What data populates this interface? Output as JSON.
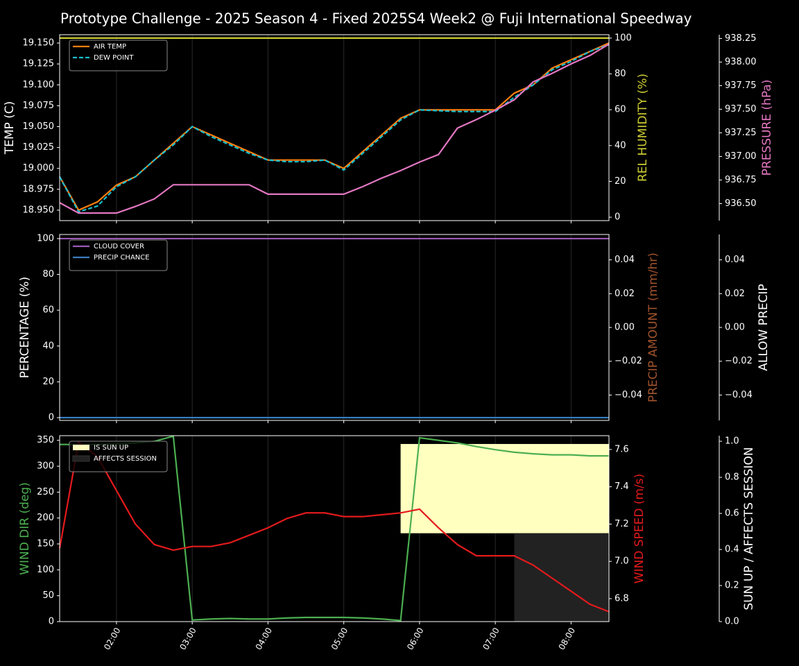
{
  "chart_data": [
    {
      "type": "line",
      "title": "Prototype Challenge  - 2025 Season 4 - Fixed 2025S4 Week2 @ Fuji International Speedway",
      "x": [
        "01:15",
        "01:30",
        "01:45",
        "02:00",
        "02:15",
        "02:30",
        "02:45",
        "03:00",
        "03:15",
        "03:30",
        "03:45",
        "04:00",
        "04:15",
        "04:30",
        "04:45",
        "05:00",
        "05:15",
        "05:30",
        "05:45",
        "06:00",
        "06:15",
        "06:30",
        "06:45",
        "07:00",
        "07:15",
        "07:30",
        "07:45",
        "08:00",
        "08:15",
        "08:30"
      ],
      "xlim": [
        "01:15",
        "08:30"
      ],
      "ylabel": "TEMP (C)",
      "ylim": [
        18.9375,
        19.16
      ],
      "yticks": [
        {
          "value": 18.95,
          "label": "18.950"
        },
        {
          "value": 18.975,
          "label": "18.975"
        },
        {
          "value": 19.0,
          "label": "19.000"
        },
        {
          "value": 19.025,
          "label": "19.025"
        },
        {
          "value": 19.05,
          "label": "19.050"
        },
        {
          "value": 19.075,
          "label": "19.075"
        },
        {
          "value": 19.1,
          "label": "19.100"
        },
        {
          "value": 19.125,
          "label": "19.125"
        },
        {
          "value": 19.15,
          "label": "19.150"
        }
      ],
      "y2label": "REL HUMIDITY (%)",
      "y2color": "#cccc33",
      "y2lim": [
        -1.9,
        101.9
      ],
      "y2ticks": [
        0,
        20,
        40,
        60,
        80,
        100
      ],
      "y3label": "PRESSURE (hPa)",
      "y3color": "#e377c2",
      "y3lim": [
        936.32,
        938.29
      ],
      "y3ticks": [
        {
          "value": 936.5,
          "label": "936.50"
        },
        936.75,
        {
          "value": 937,
          "label": "937.00"
        },
        937.25,
        {
          "value": 937.5,
          "label": "937.50"
        },
        937.75,
        {
          "value": 938,
          "label": "938.00"
        },
        938.25
      ],
      "legend": "upper left",
      "series": [
        {
          "name": "AIR TEMP",
          "color": "#ff7f0e",
          "values": [
            18.99,
            18.95,
            18.96,
            18.98,
            18.99,
            19.01,
            19.03,
            19.05,
            19.04,
            19.03,
            19.02,
            19.01,
            19.01,
            19.01,
            19.01,
            19.0,
            19.02,
            19.04,
            19.06,
            19.07,
            19.07,
            19.07,
            19.07,
            19.07,
            19.09,
            19.1,
            19.12,
            19.13,
            19.14,
            19.15
          ]
        },
        {
          "name": "DEW POINT",
          "color": "#17becf",
          "dashed": true,
          "values": [
            18.99,
            18.948,
            18.955,
            18.978,
            18.99,
            19.01,
            19.028,
            19.05,
            19.038,
            19.028,
            19.018,
            19.01,
            19.008,
            19.008,
            19.01,
            18.998,
            19.018,
            19.038,
            19.058,
            19.07,
            19.069,
            19.068,
            19.068,
            19.068,
            19.085,
            19.1,
            19.118,
            19.128,
            19.14,
            19.148
          ]
        },
        {
          "axis": "y2",
          "color": "#cccc33",
          "values": [
            100,
            100,
            100,
            100,
            100,
            100,
            100,
            100,
            100,
            100,
            100,
            100,
            100,
            100,
            100,
            100,
            100,
            100,
            100,
            100,
            100,
            100,
            100,
            100,
            100,
            100,
            100,
            100,
            100,
            100
          ]
        },
        {
          "axis": "y3",
          "color": "#e377c2",
          "values": [
            936.51,
            936.4,
            936.4,
            936.4,
            936.47,
            936.55,
            936.7,
            936.7,
            936.7,
            936.7,
            936.7,
            936.6,
            936.6,
            936.6,
            936.6,
            936.6,
            936.68,
            936.77,
            936.85,
            936.94,
            937.02,
            937.3,
            937.39,
            937.49,
            937.6,
            937.79,
            937.88,
            937.98,
            938.07,
            938.19
          ]
        }
      ]
    },
    {
      "type": "line",
      "x": [
        "01:15",
        "01:30",
        "01:45",
        "02:00",
        "02:15",
        "02:30",
        "02:45",
        "03:00",
        "03:15",
        "03:30",
        "03:45",
        "04:00",
        "04:15",
        "04:30",
        "04:45",
        "05:00",
        "05:15",
        "05:30",
        "05:45",
        "06:00",
        "06:15",
        "06:30",
        "06:45",
        "07:00",
        "07:15",
        "07:30",
        "07:45",
        "08:00",
        "08:15",
        "08:30"
      ],
      "xlim": [
        "01:15",
        "08:30"
      ],
      "ylabel": "PERCENTAGE (%)",
      "ylim": [
        -1.55,
        102.3
      ],
      "yticks": [
        0,
        20,
        40,
        60,
        80,
        100
      ],
      "y2label": "PRECIP AMOUNT (mm/hr)",
      "y2color": "#a0522d",
      "y2lim": [
        -0.055,
        0.055
      ],
      "y2ticks": [
        {
          "value": -0.04,
          "label": "−0.04"
        },
        {
          "value": -0.02,
          "label": "−0.02"
        },
        {
          "value": 0,
          "label": "0.00"
        },
        0.02,
        0.04
      ],
      "y3label": "ALLOW PRECIP",
      "y3color": "#ffffff",
      "y3lim": [
        -0.055,
        0.055
      ],
      "y3ticks": [
        {
          "value": -0.04,
          "label": "−0.04"
        },
        {
          "value": -0.02,
          "label": "−0.02"
        },
        {
          "value": 0,
          "label": "0.00"
        },
        0.02,
        0.04
      ],
      "legend": "upper left",
      "series": [
        {
          "name": "CLOUD COVER",
          "color": "#9b59b6",
          "values": [
            100,
            100,
            100,
            100,
            100,
            100,
            100,
            100,
            100,
            100,
            100,
            100,
            100,
            100,
            100,
            100,
            100,
            100,
            100,
            100,
            100,
            100,
            100,
            100,
            100,
            100,
            100,
            100,
            100,
            100
          ]
        },
        {
          "name": "PRECIP CHANCE",
          "color": "#3a7ebf",
          "values": [
            0,
            0,
            0,
            0,
            0,
            0,
            0,
            0,
            0,
            0,
            0,
            0,
            0,
            0,
            0,
            0,
            0,
            0,
            0,
            0,
            0,
            0,
            0,
            0,
            0,
            0,
            0,
            0,
            0,
            0
          ]
        }
      ]
    },
    {
      "type": "line",
      "x": [
        "01:15",
        "01:30",
        "01:45",
        "02:00",
        "02:15",
        "02:30",
        "02:45",
        "03:00",
        "03:15",
        "03:30",
        "03:45",
        "04:00",
        "04:15",
        "04:30",
        "04:45",
        "05:00",
        "05:15",
        "05:30",
        "05:45",
        "06:00",
        "06:15",
        "06:30",
        "06:45",
        "07:00",
        "07:15",
        "07:30",
        "07:45",
        "08:00",
        "08:15",
        "08:30"
      ],
      "xlim": [
        "01:15",
        "08:30"
      ],
      "xticks": [
        "02:00",
        "03:00",
        "04:00",
        "05:00",
        "06:00",
        "07:00",
        "08:00"
      ],
      "ylabel": "WIND DIR (deg)",
      "ycolor": "#4caf50",
      "ylim": [
        0,
        359
      ],
      "yticks": [
        0,
        50,
        100,
        150,
        200,
        250,
        300,
        350
      ],
      "y2label": "WIND SPEED (m/s)",
      "y2color": "#e31a1c",
      "y2lim": [
        6.677,
        7.674
      ],
      "y2ticks": [
        6.8,
        {
          "value": 7.0,
          "label": "7.0"
        },
        7.2,
        7.4,
        7.6
      ],
      "y3label": "SUN UP / AFFECTS SESSION",
      "y3color": "#ffffff",
      "y3lim": [
        0,
        1.031
      ],
      "y3ticks": [
        {
          "value": 0,
          "label": "0.0"
        },
        0.2,
        0.4,
        0.6,
        0.8,
        {
          "value": 1,
          "label": "1.0"
        }
      ],
      "legend": "upper left",
      "bands": [
        {
          "name": "IS SUN UP",
          "color": "#ffffc0",
          "x": [
            "05:45",
            "08:30"
          ],
          "y": [
            0.49,
            0.985
          ]
        },
        {
          "name": "AFFECTS SESSION",
          "color": "#222222",
          "x": [
            "07:15",
            "08:30"
          ],
          "y": [
            0,
            0.49
          ]
        }
      ],
      "series": [
        {
          "color": "#4caf50",
          "values": [
            342,
            342,
            342,
            343,
            345,
            348,
            358,
            3,
            5,
            6,
            5,
            5,
            7,
            8,
            8,
            8,
            7,
            5,
            2,
            355,
            350,
            345,
            338,
            332,
            327,
            324,
            322,
            322,
            320,
            320
          ]
        },
        {
          "axis": "y2",
          "color": "#e31a1c",
          "values": [
            7.07,
            7.64,
            7.56,
            7.38,
            7.2,
            7.09,
            7.06,
            7.08,
            7.08,
            7.1,
            7.14,
            7.18,
            7.23,
            7.26,
            7.26,
            7.24,
            7.24,
            7.25,
            7.26,
            7.28,
            7.18,
            7.09,
            7.03,
            7.03,
            7.03,
            6.98,
            6.91,
            6.84,
            6.77,
            6.73
          ]
        }
      ]
    }
  ]
}
